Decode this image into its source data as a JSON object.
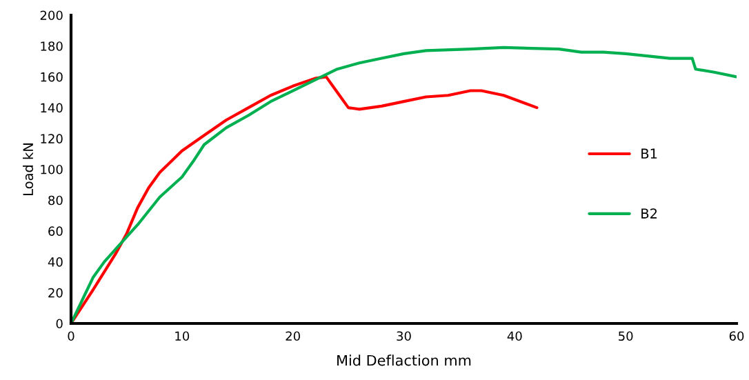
{
  "chart_data": {
    "type": "line",
    "xlabel": "Mid Deflaction mm",
    "ylabel": "Load kN",
    "xlim": [
      0,
      60
    ],
    "ylim": [
      0,
      200
    ],
    "xticks": [
      0,
      10,
      20,
      30,
      40,
      50,
      60
    ],
    "yticks": [
      0,
      20,
      40,
      60,
      80,
      100,
      120,
      140,
      160,
      180,
      200
    ],
    "grid": false,
    "legend": "right",
    "marker": "none",
    "line_style": "solid",
    "series": [
      {
        "name": "B1",
        "color": "#ff0000",
        "x": [
          0,
          2,
          4,
          5,
          6,
          7,
          8,
          10,
          12,
          14,
          16,
          18,
          20,
          22,
          23,
          24,
          25,
          26,
          28,
          30,
          32,
          34,
          36,
          37,
          39,
          42
        ],
        "values": [
          0,
          22,
          45,
          58,
          75,
          88,
          98,
          112,
          122,
          132,
          140,
          148,
          154,
          159,
          160,
          150,
          140,
          139,
          141,
          144,
          147,
          148,
          151,
          151,
          148,
          140
        ]
      },
      {
        "name": "B2",
        "color": "#00b050",
        "x": [
          0,
          1,
          2,
          3,
          4,
          6,
          8,
          10,
          11,
          12,
          14,
          16,
          18,
          20,
          22,
          24,
          26,
          28,
          30,
          32,
          36,
          39,
          44,
          46,
          48,
          50,
          54,
          56,
          56.3,
          58,
          60
        ],
        "values": [
          0,
          15,
          30,
          40,
          48,
          64,
          82,
          95,
          105,
          116,
          127,
          135,
          144,
          151,
          158,
          165,
          169,
          172,
          175,
          177,
          178,
          179,
          178,
          176,
          176,
          175,
          172,
          172,
          165,
          163,
          160
        ]
      }
    ]
  }
}
